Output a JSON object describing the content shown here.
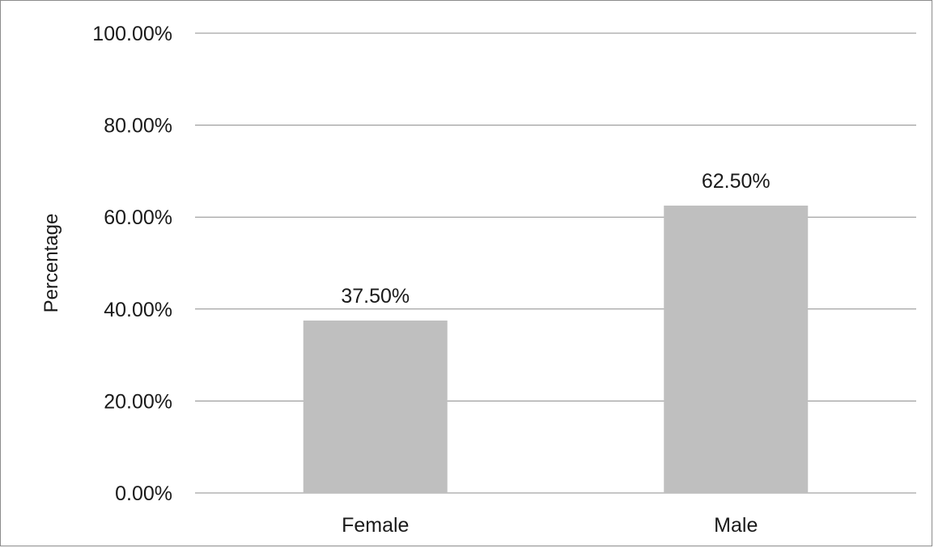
{
  "chart_data": {
    "type": "bar",
    "title": "",
    "xlabel": "",
    "ylabel": "Percentage",
    "categories": [
      "Female",
      "Male"
    ],
    "values": [
      37.5,
      62.5
    ],
    "value_labels": [
      "37.50%",
      "62.50%"
    ],
    "ylim": [
      0,
      100
    ],
    "yticks": [
      0,
      20,
      40,
      60,
      80,
      100
    ],
    "ytick_labels": [
      "0.00%",
      "20.00%",
      "40.00%",
      "60.00%",
      "80.00%",
      "100.00%"
    ],
    "grid": true,
    "legend": "none",
    "colors": {
      "bar": "#bfbfbf",
      "grid": "#8c8c8c",
      "text": "#1a1a1a"
    }
  }
}
